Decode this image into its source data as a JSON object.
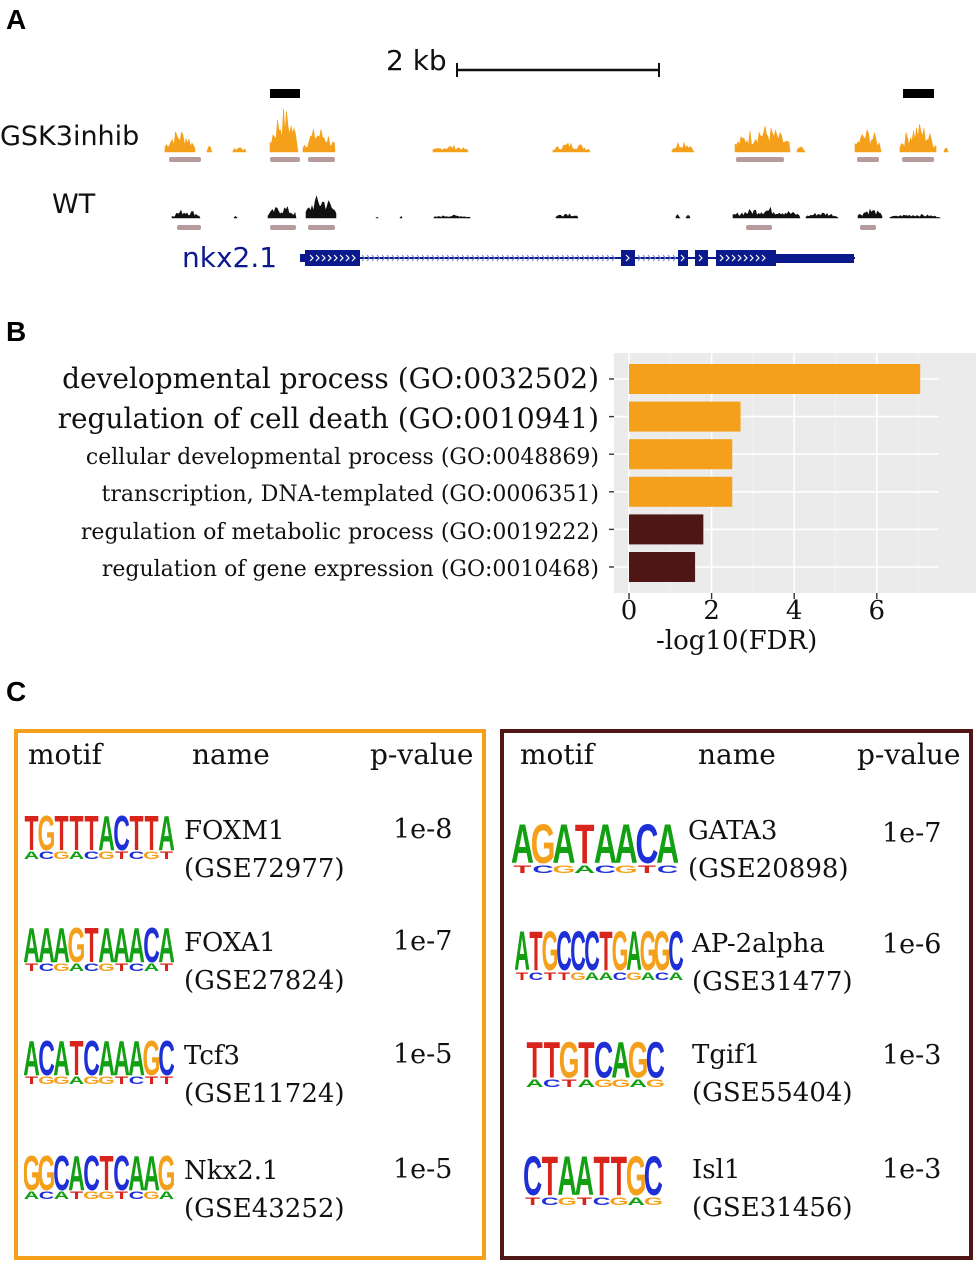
{
  "panels": {
    "a": "A",
    "b": "B",
    "c": "C"
  },
  "colors": {
    "orange": "#F5A01A",
    "maroon": "#4F1616",
    "navy": "#0A1A8C",
    "peak_bar": "#B59B9B",
    "grid_bg": "#EBEBEB"
  },
  "track": {
    "scale_label": "2 kb",
    "track1": "GSK3inhib",
    "track2": "WT",
    "gene": "nkx2.1"
  },
  "go": {
    "terms": [
      {
        "label": "developmental process (GO:0032502)",
        "value": 7.05,
        "group": "orange"
      },
      {
        "label": "regulation of cell death (GO:0010941)",
        "value": 2.7,
        "group": "orange"
      },
      {
        "label": "cellular developmental process (GO:0048869)",
        "value": 2.5,
        "group": "orange"
      },
      {
        "label": "transcription, DNA-templated (GO:0006351)",
        "value": 2.5,
        "group": "orange"
      },
      {
        "label": "regulation of metabolic process (GO:0019222)",
        "value": 1.8,
        "group": "maroon"
      },
      {
        "label": "regulation of gene expression (GO:0010468)",
        "value": 1.6,
        "group": "maroon"
      }
    ],
    "xlabel": "-log10(FDR)",
    "ticks": [
      "0",
      "2",
      "4",
      "6"
    ]
  },
  "chart_data": {
    "type": "bar",
    "orientation": "horizontal",
    "categories": [
      "developmental process (GO:0032502)",
      "regulation of cell death (GO:0010941)",
      "cellular developmental process (GO:0048869)",
      "transcription, DNA-templated (GO:0006351)",
      "regulation of metabolic process (GO:0019222)",
      "regulation of gene expression (GO:0010468)"
    ],
    "values": [
      7.05,
      2.7,
      2.5,
      2.5,
      1.8,
      1.6
    ],
    "xlabel": "-log10(FDR)",
    "ylabel": "",
    "xlim": [
      -0.3,
      8.4
    ],
    "xticks": [
      0,
      2,
      4,
      6
    ]
  },
  "motifs": {
    "headers": {
      "motif": "motif",
      "name": "name",
      "pvalue": "p-value"
    },
    "left": [
      {
        "name1": "FOXM1",
        "name2": "(GSE72977)",
        "p": "1e-8",
        "seq": "TGTTTACTTA"
      },
      {
        "name1": "FOXA1",
        "name2": "(GSE27824)",
        "p": "1e-7",
        "seq": "AAAGTAAACA"
      },
      {
        "name1": "Tcf3",
        "name2": "(GSE11724)",
        "p": "1e-5",
        "seq": "ACATCAAAGC"
      },
      {
        "name1": "Nkx2.1",
        "name2": "(GSE43252)",
        "p": "1e-5",
        "seq": "GGCACTCAAG"
      }
    ],
    "right": [
      {
        "name1": "GATA3",
        "name2": "(GSE20898)",
        "p": "1e-7",
        "seq": "AGATAACA"
      },
      {
        "name1": "AP-2alpha",
        "name2": "(GSE31477)",
        "p": "1e-6",
        "seq": "ATGCCCTGAGGC"
      },
      {
        "name1": "Tgif1",
        "name2": "(GSE55404)",
        "p": "1e-3",
        "seq": "TTGTCAGC"
      },
      {
        "name1": "Isl1",
        "name2": "(GSE31456)",
        "p": "1e-3",
        "seq": "CTAATTGC"
      }
    ]
  }
}
